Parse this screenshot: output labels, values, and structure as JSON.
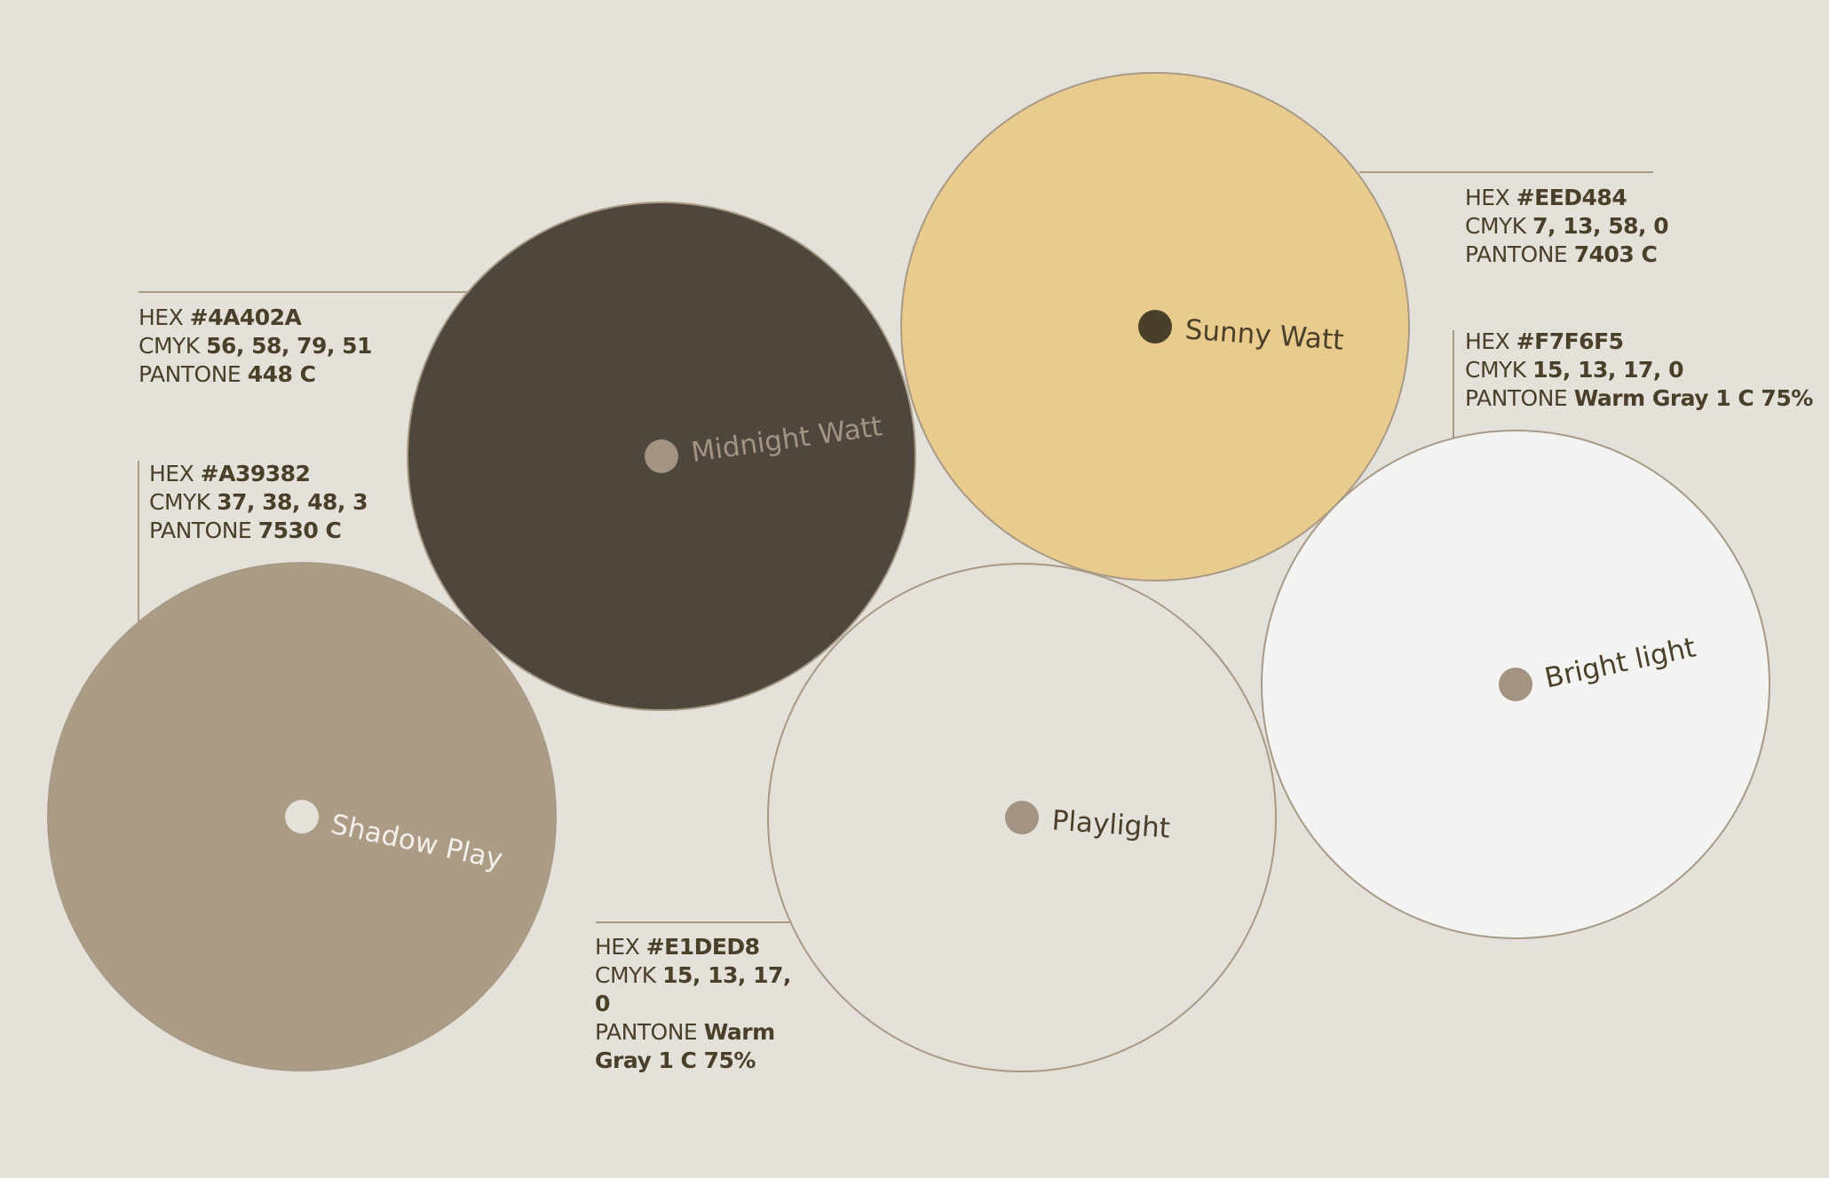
{
  "colors": {
    "background": "#E4E0DA",
    "outline": "#A89A86",
    "text": "#4A402A"
  },
  "swatches": [
    {
      "name": "Midnight Watt",
      "fill": "#4F463D",
      "dot": "#A39382",
      "label_color": "#A39382",
      "rotation": -8,
      "hex_label": "HEX",
      "hex": "#4A402A",
      "cmyk_label": "CMYK",
      "cmyk": "56, 58, 79, 51",
      "pantone_label": "PANTONE",
      "pantone": "448 C"
    },
    {
      "name": "Sunny Watt",
      "fill": "#EACB8E",
      "dot": "#4A402A",
      "label_color": "#4A402A",
      "rotation": 4,
      "hex_label": "HEX",
      "hex": "#EED484",
      "cmyk_label": "CMYK",
      "cmyk": "7, 13, 58, 0",
      "pantone_label": "PANTONE",
      "pantone": "7403 C"
    },
    {
      "name": "Shadow Play",
      "fill": "#AC9C85",
      "dot": "#E4E0DA",
      "label_color": "#F2EFEA",
      "rotation": 12,
      "hex_label": "HEX",
      "hex": "#A39382",
      "cmyk_label": "CMYK",
      "cmyk": "37, 38, 48, 3",
      "pantone_label": "PANTONE",
      "pantone": "7530 C"
    },
    {
      "name": "Playlight",
      "fill": "#E4E0DA",
      "dot": "#A39382",
      "label_color": "#4A402A",
      "rotation": 4,
      "hex_label": "HEX",
      "hex": "#E1DED8",
      "cmyk_label": "CMYK",
      "cmyk": "15, 13, 17, 0",
      "pantone_label": "PANTONE",
      "pantone": "Warm Gray 1 C 75%"
    },
    {
      "name": "Bright light",
      "fill": "#F3F3F2",
      "dot": "#A39382",
      "label_color": "#4A402A",
      "rotation": -12,
      "hex_label": "HEX",
      "hex": "#F7F6F5",
      "cmyk_label": "CMYK",
      "cmyk": "15, 13, 17, 0",
      "pantone_label": "PANTONE",
      "pantone": "Warm Gray 1 C 75%"
    }
  ]
}
